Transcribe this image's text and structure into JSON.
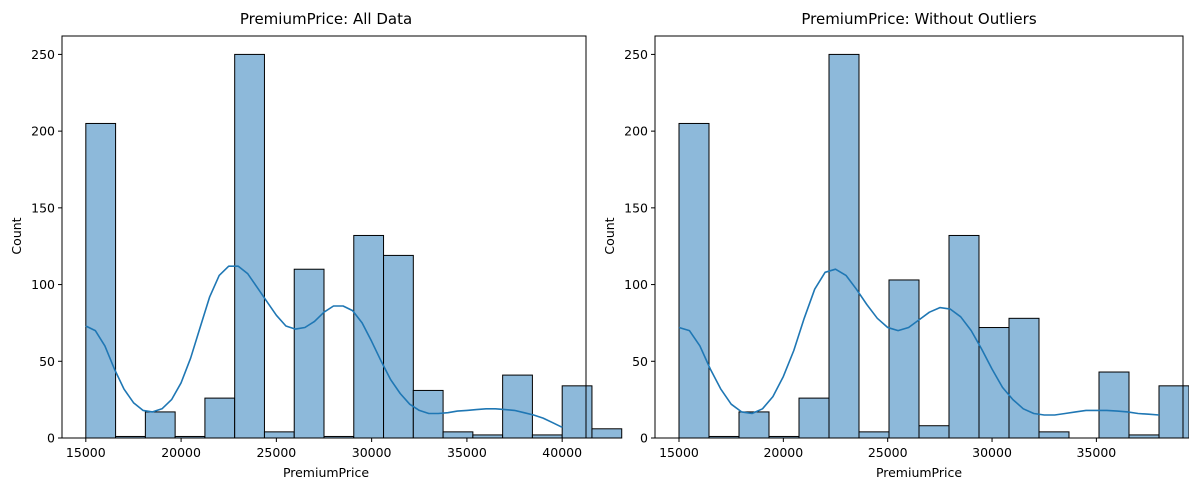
{
  "chart_data": [
    {
      "type": "histogram",
      "title": "PremiumPrice: All Data",
      "xlabel": "PremiumPrice",
      "ylabel": "Count",
      "xlim": [
        13750,
        41250
      ],
      "ylim": [
        0,
        262
      ],
      "xticks": [
        15000,
        20000,
        25000,
        30000,
        35000,
        40000
      ],
      "xtick_labels": [
        "15000",
        "20000",
        "25000",
        "30000",
        "35000",
        "40000"
      ],
      "yticks": [
        0,
        50,
        100,
        150,
        200,
        250
      ],
      "ytick_labels": [
        "0",
        "50",
        "100",
        "150",
        "200",
        "250"
      ],
      "bin_start": 15000,
      "bin_width": 1562.5,
      "counts": [
        205,
        1,
        17,
        1,
        26,
        250,
        4,
        110,
        1,
        132,
        119,
        31,
        4,
        2,
        41,
        2,
        34,
        6
      ],
      "bar_color": "#8db9da",
      "edge_color": "#000000",
      "kde_color": "#1f77b4",
      "kde": {
        "x": [
          15000,
          15500,
          16000,
          16500,
          17000,
          17500,
          18000,
          18500,
          19000,
          19500,
          20000,
          20500,
          21000,
          21500,
          22000,
          22500,
          23000,
          23500,
          24000,
          24500,
          25000,
          25500,
          26000,
          26500,
          27000,
          27500,
          28000,
          28500,
          29000,
          29500,
          30000,
          30500,
          31000,
          31500,
          32000,
          32500,
          33000,
          33500,
          34000,
          34500,
          35000,
          35500,
          36000,
          36500,
          37000,
          37500,
          38000,
          38500,
          39000,
          39500,
          40000
        ],
        "y": [
          73,
          70,
          60,
          45,
          32,
          23,
          18,
          17,
          19,
          25,
          36,
          52,
          72,
          92,
          106,
          112,
          112,
          107,
          98,
          89,
          80,
          73,
          71,
          72,
          76,
          82,
          86,
          86,
          83,
          75,
          63,
          50,
          38,
          29,
          22,
          18,
          16,
          16,
          16.5,
          17.5,
          18,
          18.5,
          19,
          19,
          18.5,
          18,
          16.5,
          15,
          13,
          10,
          7
        ]
      }
    },
    {
      "type": "histogram",
      "title": "PremiumPrice: Without Outliers",
      "xlabel": "PremiumPrice",
      "ylabel": "Count",
      "xlim": [
        13850,
        39150
      ],
      "ylim": [
        0,
        262
      ],
      "xticks": [
        15000,
        20000,
        25000,
        30000,
        35000
      ],
      "xtick_labels": [
        "15000",
        "20000",
        "25000",
        "30000",
        "35000"
      ],
      "yticks": [
        0,
        50,
        100,
        150,
        200,
        250
      ],
      "ytick_labels": [
        "0",
        "50",
        "100",
        "150",
        "200",
        "250"
      ],
      "bin_start": 15000,
      "bin_width": 1437.5,
      "counts": [
        205,
        1,
        17,
        1,
        26,
        250,
        4,
        103,
        8,
        132,
        72,
        78,
        4,
        0,
        43,
        2,
        34
      ],
      "bar_color": "#8db9da",
      "edge_color": "#000000",
      "kde_color": "#1f77b4",
      "kde": {
        "x": [
          15000,
          15500,
          16000,
          16500,
          17000,
          17500,
          18000,
          18500,
          19000,
          19500,
          20000,
          20500,
          21000,
          21500,
          22000,
          22500,
          23000,
          23500,
          24000,
          24500,
          25000,
          25500,
          26000,
          26500,
          27000,
          27500,
          28000,
          28500,
          29000,
          29500,
          30000,
          30500,
          31000,
          31500,
          32000,
          32500,
          33000,
          33500,
          34000,
          34500,
          35000,
          35500,
          36000,
          36500,
          37000,
          37500,
          38000
        ],
        "y": [
          72,
          70,
          60,
          45,
          32,
          22,
          17,
          16,
          19,
          27,
          40,
          57,
          78,
          97,
          108,
          110,
          106,
          97,
          87,
          78,
          72,
          70,
          72,
          77,
          82,
          85,
          84,
          79,
          70,
          58,
          45,
          33,
          25,
          19,
          16,
          15,
          15,
          16,
          17,
          18,
          18,
          18,
          17.5,
          17,
          16,
          15.5,
          15
        ]
      }
    }
  ]
}
